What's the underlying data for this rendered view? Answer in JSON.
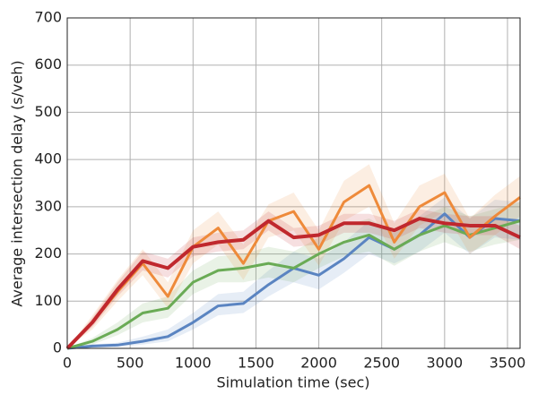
{
  "chart_data": {
    "type": "line",
    "xlabel": "Simulation time (sec)",
    "ylabel": "Average intersection delay (s/veh)",
    "x": [
      0,
      200,
      400,
      600,
      800,
      1000,
      1200,
      1400,
      1600,
      1800,
      2000,
      2200,
      2400,
      2600,
      2800,
      3000,
      3200,
      3400,
      3600
    ],
    "xlim": [
      0,
      3600
    ],
    "xticks": [
      0,
      500,
      1000,
      1500,
      2000,
      2500,
      3000,
      3500
    ],
    "ylim": [
      0,
      700
    ],
    "yticks": [
      0,
      100,
      200,
      300,
      400,
      500,
      600,
      700
    ],
    "grid": true,
    "series": [
      {
        "color": "#5a84c1",
        "values": [
          0,
          5,
          7,
          15,
          25,
          55,
          90,
          95,
          135,
          170,
          155,
          190,
          235,
          210,
          240,
          285,
          235,
          275,
          270
        ],
        "lower": [
          0,
          2,
          3,
          8,
          15,
          40,
          70,
          75,
          110,
          140,
          125,
          160,
          200,
          180,
          205,
          245,
          200,
          235,
          230
        ],
        "upper": [
          0,
          8,
          12,
          25,
          40,
          75,
          115,
          120,
          165,
          205,
          190,
          225,
          270,
          245,
          280,
          320,
          275,
          315,
          310
        ]
      },
      {
        "color": "#6aab55",
        "values": [
          0,
          15,
          40,
          75,
          85,
          140,
          165,
          170,
          180,
          170,
          200,
          225,
          240,
          210,
          240,
          260,
          240,
          255,
          270
        ],
        "lower": [
          0,
          8,
          28,
          55,
          65,
          115,
          140,
          140,
          150,
          140,
          170,
          195,
          205,
          175,
          205,
          225,
          205,
          220,
          230
        ],
        "upper": [
          0,
          22,
          55,
          95,
          110,
          165,
          195,
          200,
          215,
          205,
          235,
          260,
          275,
          245,
          275,
          300,
          280,
          295,
          310
        ]
      },
      {
        "color": "#ee8a3a",
        "values": [
          0,
          55,
          120,
          180,
          110,
          215,
          255,
          180,
          270,
          290,
          210,
          310,
          345,
          225,
          300,
          330,
          235,
          280,
          320
        ],
        "lower": [
          0,
          40,
          100,
          155,
          85,
          180,
          220,
          145,
          235,
          250,
          175,
          270,
          300,
          190,
          260,
          290,
          200,
          240,
          280
        ],
        "upper": [
          0,
          70,
          145,
          210,
          140,
          250,
          290,
          220,
          305,
          330,
          250,
          355,
          390,
          265,
          345,
          370,
          275,
          325,
          365
        ]
      },
      {
        "color": "#c0282d",
        "values": [
          0,
          55,
          125,
          185,
          170,
          215,
          225,
          230,
          270,
          235,
          240,
          265,
          265,
          250,
          275,
          265,
          260,
          260,
          235
        ],
        "lower": [
          0,
          45,
          110,
          165,
          150,
          195,
          205,
          210,
          250,
          215,
          220,
          245,
          245,
          230,
          255,
          245,
          240,
          240,
          210
        ],
        "upper": [
          0,
          65,
          140,
          205,
          190,
          235,
          245,
          250,
          290,
          255,
          260,
          285,
          285,
          270,
          295,
          285,
          280,
          280,
          260
        ]
      }
    ]
  }
}
